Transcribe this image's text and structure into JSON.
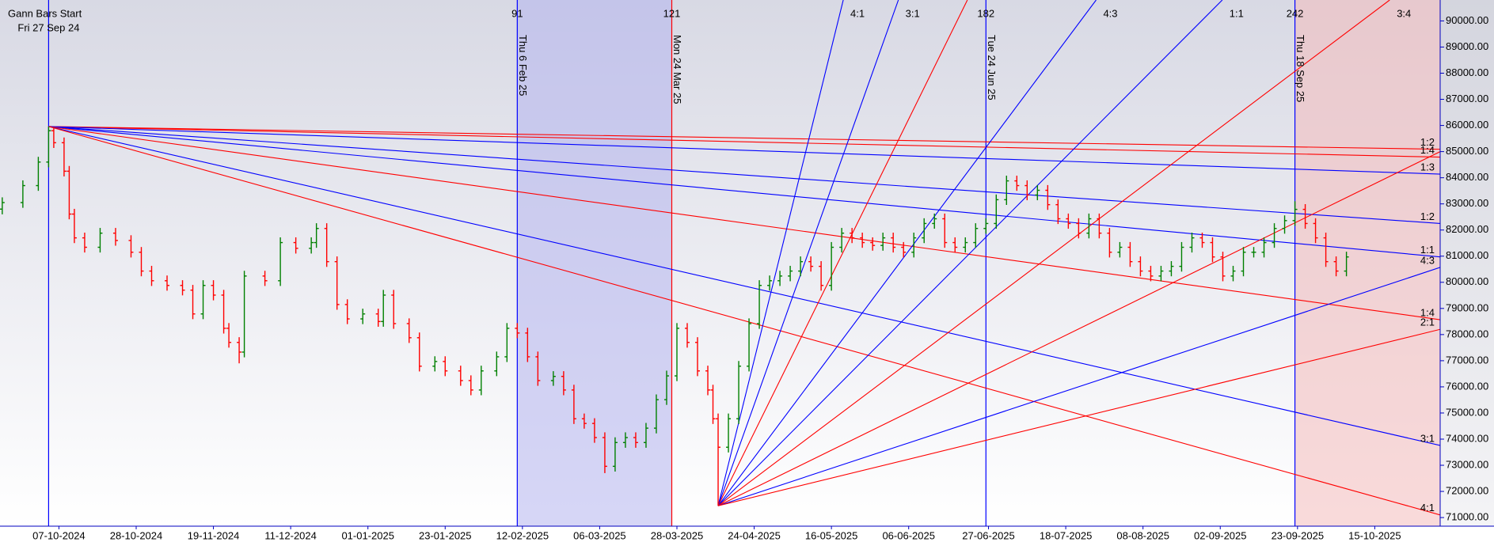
{
  "chart_data": {
    "type": "ohlc",
    "xlim": [
      -9.44,
      270.2
    ],
    "ylim": [
      70670,
      90800
    ],
    "xticks": [
      {
        "value": 2,
        "label": "07-10-2024"
      },
      {
        "value": 17,
        "label": "28-10-2024"
      },
      {
        "value": 32,
        "label": "19-11-2024"
      },
      {
        "value": 47,
        "label": "11-12-2024"
      },
      {
        "value": 62,
        "label": "01-01-2025"
      },
      {
        "value": 77,
        "label": "23-01-2025"
      },
      {
        "value": 92,
        "label": "12-02-2025"
      },
      {
        "value": 107,
        "label": "06-03-2025"
      },
      {
        "value": 122,
        "label": "28-03-2025"
      },
      {
        "value": 137,
        "label": "24-04-2025"
      },
      {
        "value": 152,
        "label": "16-05-2025"
      },
      {
        "value": 167,
        "label": "06-06-2025"
      },
      {
        "value": 182.5,
        "label": "27-06-2025"
      },
      {
        "value": 197.5,
        "label": "18-07-2025"
      },
      {
        "value": 212.5,
        "label": "08-08-2025"
      },
      {
        "value": 227.5,
        "label": "02-09-2025"
      },
      {
        "value": 242.5,
        "label": "23-09-2025"
      },
      {
        "value": 257.5,
        "label": "15-10-2025"
      }
    ],
    "yticks": [
      {
        "value": 90000,
        "label": "90000.00"
      },
      {
        "value": 89000,
        "label": "89000.00"
      },
      {
        "value": 88000,
        "label": "88000.00"
      },
      {
        "value": 87000,
        "label": "87000.00"
      },
      {
        "value": 86000,
        "label": "86000.00"
      },
      {
        "value": 85000,
        "label": "85000.00"
      },
      {
        "value": 84000,
        "label": "84000.00"
      },
      {
        "value": 83000,
        "label": "83000.00"
      },
      {
        "value": 82000,
        "label": "82000.00"
      },
      {
        "value": 81000,
        "label": "81000.00"
      },
      {
        "value": 80000,
        "label": "80000.00"
      },
      {
        "value": 79000,
        "label": "79000.00"
      },
      {
        "value": 78000,
        "label": "78000.00"
      },
      {
        "value": 77000,
        "label": "77000.00"
      },
      {
        "value": 76000,
        "label": "76000.00"
      },
      {
        "value": 75000,
        "label": "75000.00"
      },
      {
        "value": 74000,
        "label": "74000.00"
      },
      {
        "value": 73000,
        "label": "73000.00"
      },
      {
        "value": 72000,
        "label": "72000.00"
      },
      {
        "value": 71000,
        "label": "71000.00"
      }
    ],
    "up_color": "#008000",
    "down_color": "#ff0000",
    "x": [
      -9,
      -5,
      -2,
      0,
      1,
      3,
      4,
      5,
      7,
      10,
      13,
      16,
      18,
      20,
      23,
      26,
      28,
      30,
      32,
      34,
      35,
      37,
      38,
      42,
      45,
      48,
      51,
      52,
      54,
      56,
      58,
      61,
      64,
      65,
      67,
      70,
      72,
      75,
      77,
      80,
      82,
      84,
      87,
      89,
      91,
      93,
      95,
      98,
      100,
      102,
      104,
      106,
      108,
      110,
      112,
      114,
      116,
      118,
      120,
      122,
      124,
      126,
      128,
      129,
      130,
      132,
      134,
      136,
      138,
      140,
      142,
      144,
      146,
      148,
      150,
      152,
      154,
      156,
      158,
      160,
      162,
      164,
      166,
      168,
      170,
      172,
      174,
      176,
      178,
      180,
      182,
      184,
      186,
      188,
      190,
      192,
      194,
      196,
      198,
      200,
      202,
      204,
      206,
      208,
      210,
      212,
      214,
      216,
      218,
      220,
      222,
      224,
      226,
      228,
      230,
      232,
      234,
      236,
      238,
      240,
      242,
      244,
      246,
      248,
      250,
      252
    ],
    "open": [
      82800,
      83050,
      83700,
      84600,
      85800,
      85340,
      84250,
      82610,
      81700,
      81340,
      81880,
      81600,
      81150,
      80430,
      80060,
      79880,
      79700,
      78790,
      79880,
      79510,
      78240,
      77700,
      77330,
      80240,
      80060,
      81520,
      81300,
      81520,
      82060,
      80790,
      79150,
      78600,
      78790,
      78500,
      79510,
      78420,
      77880,
      76790,
      76970,
      76610,
      76240,
      75880,
      76610,
      77150,
      78240,
      78060,
      77150,
      76240,
      76400,
      75880,
      74780,
      74600,
      74060,
      72960,
      73870,
      74060,
      73870,
      74420,
      75510,
      76420,
      78240,
      77700,
      76610,
      75880,
      74780,
      73690,
      74780,
      76790,
      78420,
      79880,
      80060,
      80240,
      80430,
      80790,
      80610,
      79880,
      81340,
      81880,
      81700,
      81520,
      81410,
      81700,
      81340,
      81150,
      81700,
      82250,
      82430,
      81520,
      81340,
      81520,
      82060,
      82250,
      83160,
      83880,
      83700,
      83340,
      83520,
      82970,
      82430,
      82250,
      81880,
      82430,
      81880,
      81150,
      81340,
      80790,
      80430,
      80240,
      80430,
      80610,
      81340,
      81700,
      81520,
      80970,
      80240,
      80430,
      81150,
      81150,
      81520,
      82060,
      82360,
      82790,
      82250,
      81700,
      80790,
      80430
    ],
    "high": [
      83250,
      83900,
      84800,
      85960,
      85900,
      85540,
      84450,
      82810,
      81900,
      82080,
      82080,
      81800,
      81350,
      80630,
      80260,
      80080,
      79900,
      80080,
      80080,
      79710,
      78440,
      77900,
      80440,
      80440,
      81720,
      81720,
      81720,
      82260,
      82260,
      80990,
      79350,
      78990,
      78990,
      79710,
      79710,
      78620,
      78080,
      77170,
      77170,
      76810,
      76440,
      76810,
      77350,
      78440,
      78440,
      78260,
      77350,
      76600,
      76600,
      76080,
      74980,
      74800,
      74260,
      74070,
      74260,
      74260,
      74620,
      75710,
      76620,
      78440,
      78440,
      77900,
      76810,
      76080,
      74980,
      74980,
      76990,
      78620,
      80080,
      80260,
      80440,
      80630,
      80990,
      80990,
      80810,
      81540,
      82080,
      82080,
      81900,
      81720,
      81900,
      81900,
      81540,
      81900,
      82450,
      82630,
      82630,
      81720,
      81720,
      82260,
      82450,
      83360,
      84080,
      84080,
      83900,
      83720,
      83720,
      83170,
      82630,
      82450,
      82630,
      82630,
      82080,
      81540,
      81540,
      80990,
      80630,
      80630,
      80810,
      81540,
      81900,
      81900,
      81720,
      81170,
      80630,
      81350,
      81350,
      81720,
      82260,
      82560,
      83100,
      82990,
      82450,
      81900,
      80990,
      81170
    ],
    "low": [
      82600,
      82850,
      83500,
      84400,
      85140,
      84050,
      82410,
      81500,
      81140,
      81140,
      81400,
      80950,
      80230,
      79860,
      79680,
      79500,
      78590,
      78590,
      79310,
      78040,
      77500,
      76900,
      77130,
      79860,
      79860,
      81100,
      81100,
      81320,
      80590,
      78950,
      78400,
      78400,
      78300,
      78300,
      78220,
      77680,
      76590,
      76590,
      76410,
      76040,
      75680,
      75680,
      76410,
      76950,
      77860,
      76950,
      76040,
      76040,
      75680,
      74580,
      74400,
      73860,
      72700,
      72760,
      73670,
      73670,
      73670,
      74220,
      75310,
      76220,
      77500,
      76410,
      75680,
      74580,
      71450,
      73490,
      74580,
      76590,
      78220,
      79680,
      79860,
      80040,
      80230,
      80410,
      79680,
      79680,
      81140,
      81500,
      81320,
      81210,
      81210,
      81140,
      80950,
      80950,
      81500,
      82050,
      81320,
      81140,
      81140,
      81320,
      81860,
      82050,
      82960,
      83500,
      83140,
      83140,
      82770,
      82230,
      82050,
      81680,
      81680,
      81680,
      80950,
      80950,
      80590,
      80230,
      80040,
      80040,
      80230,
      80410,
      81140,
      81320,
      80770,
      80040,
      80040,
      80230,
      80950,
      80950,
      81320,
      81860,
      82160,
      82050,
      81500,
      80590,
      80230,
      80230
    ],
    "close": [
      83050,
      83700,
      84600,
      85800,
      85340,
      84250,
      82610,
      81700,
      81340,
      81880,
      81600,
      81150,
      80430,
      80060,
      79880,
      79700,
      78790,
      79880,
      79510,
      78240,
      77700,
      77330,
      80240,
      80060,
      81520,
      81300,
      81520,
      82060,
      80790,
      79150,
      78600,
      78790,
      78500,
      79510,
      78420,
      77880,
      76790,
      76970,
      76610,
      76240,
      75880,
      76610,
      77150,
      78240,
      78060,
      77150,
      76240,
      76400,
      75880,
      74780,
      74600,
      74060,
      72960,
      73870,
      74060,
      73870,
      74420,
      75510,
      76420,
      78240,
      77700,
      76610,
      75880,
      74780,
      73690,
      74780,
      76790,
      78420,
      79880,
      80060,
      80240,
      80430,
      80790,
      80610,
      79880,
      81340,
      81880,
      81700,
      81520,
      81410,
      81700,
      81340,
      81150,
      81700,
      82250,
      82430,
      81520,
      81340,
      81520,
      82060,
      82250,
      83160,
      83880,
      83700,
      83340,
      83520,
      82970,
      82430,
      82250,
      81880,
      82430,
      81880,
      81150,
      81340,
      80790,
      80430,
      80240,
      80430,
      80610,
      81340,
      81700,
      81520,
      80970,
      80240,
      80430,
      81150,
      81150,
      81520,
      82060,
      82360,
      82790,
      82250,
      81700,
      80790,
      80430,
      80970
    ],
    "start": {
      "x": 0,
      "title": "Gann Bars Start",
      "date": "Fri 27 Sep 24",
      "color": "#0000ff"
    },
    "markers": [
      {
        "x": 91,
        "date": "Thu 6 Feb 25",
        "color": "#0000ff"
      },
      {
        "x": 121,
        "date": "Mon 24 Mar 25",
        "color": "#ff0000"
      },
      {
        "x": 182,
        "date": "Tue 24 Jun 25",
        "color": "#0000ff"
      },
      {
        "x": 242,
        "date": "Thu 18 Sep 25",
        "color": "#0000ff"
      }
    ],
    "bands": [
      {
        "from": 91,
        "to": 121,
        "color": "#b4b4ee"
      },
      {
        "from": 242,
        "color": "#f4bcbc"
      }
    ],
    "fan_lines": [
      {
        "color": "#ff0000",
        "x": [
          0,
          270.2
        ],
        "y": [
          85960,
          85090
        ],
        "label": "1:2"
      },
      {
        "color": "#ff0000",
        "x": [
          0,
          270.2
        ],
        "y": [
          85960,
          84790
        ],
        "label": "1:4"
      },
      {
        "color": "#0000ff",
        "x": [
          0,
          270.2
        ],
        "y": [
          85960,
          84140
        ],
        "label": "1:3"
      },
      {
        "color": "#0000ff",
        "x": [
          0,
          270.2
        ],
        "y": [
          85960,
          82250
        ],
        "label": "1:2"
      },
      {
        "color": "#0000ff",
        "x": [
          0,
          270.2
        ],
        "y": [
          85960,
          80970
        ],
        "label": "1:1"
      },
      {
        "color": "#ff0000",
        "x": [
          0,
          270.2
        ],
        "y": [
          85960,
          78570
        ],
        "label": "1:4"
      },
      {
        "color": "#0000ff",
        "x": [
          0,
          270.2
        ],
        "y": [
          85960,
          73760
        ],
        "label": "3:1"
      },
      {
        "color": "#ff0000",
        "x": [
          0,
          270.2
        ],
        "y": [
          85960,
          71100
        ],
        "label": "4:1"
      },
      {
        "color": "#0000ff",
        "x": [
          130,
          154.3
        ],
        "y": [
          71450,
          90800
        ],
        "label": "4:1"
      },
      {
        "color": "#0000ff",
        "x": [
          130,
          165
        ],
        "y": [
          71450,
          90800
        ],
        "label": "3:1"
      },
      {
        "color": "#ff0000",
        "x": [
          130,
          178.4
        ],
        "y": [
          71450,
          90800
        ]
      },
      {
        "color": "#0000ff",
        "x": [
          130,
          203.4
        ],
        "y": [
          71450,
          90800
        ],
        "label": "4:3"
      },
      {
        "color": "#0000ff",
        "x": [
          130,
          227.9
        ],
        "y": [
          71450,
          90800
        ],
        "label": "1:1"
      },
      {
        "color": "#ff0000",
        "x": [
          130,
          260.4
        ],
        "y": [
          71450,
          90800
        ],
        "label": "3:4"
      },
      {
        "color": "#ff0000",
        "x": [
          130,
          270.2
        ],
        "y": [
          71450,
          85000
        ]
      },
      {
        "color": "#0000ff",
        "x": [
          130,
          270.2
        ],
        "y": [
          71450,
          80570
        ],
        "label": "4:3"
      },
      {
        "color": "#ff0000",
        "x": [
          130,
          270.2
        ],
        "y": [
          71450,
          78200
        ],
        "label": "2:1"
      }
    ]
  }
}
